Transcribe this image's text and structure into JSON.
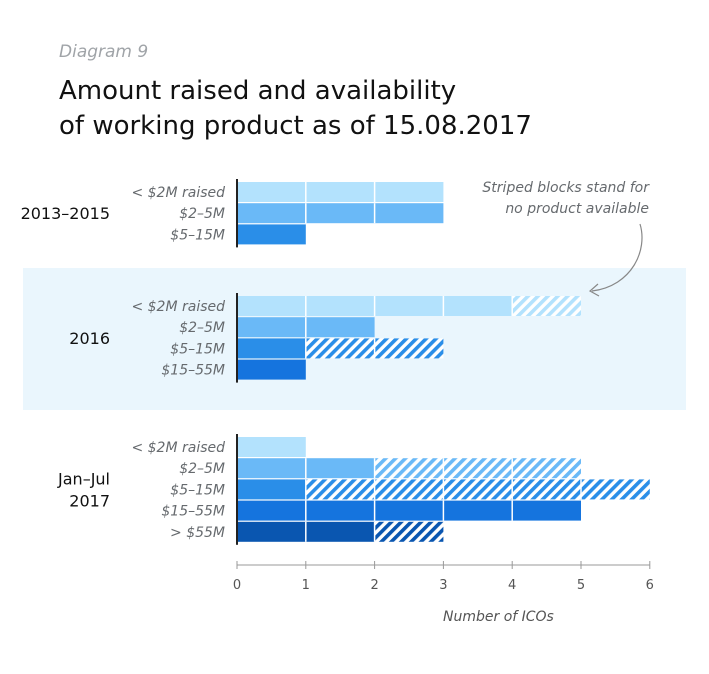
{
  "header": {
    "diagram_label": "Diagram 9",
    "title_line1": "Amount raised and availability",
    "title_line2": "of working product as of 15.08.2017"
  },
  "annotation": {
    "line1": "Striped blocks stand for",
    "line2": "no product available"
  },
  "colors": {
    "< $2M raised": "#b3e2fd",
    "$2–5M": "#6ab9f7",
    "$5–15M": "#2a8ee8",
    "$15–55M": "#1574de",
    "> $55M": "#0a56b0",
    "highlight_band": "#eaf6fd",
    "axis": "#222222"
  },
  "chart_data": {
    "type": "bar",
    "orientation": "horizontal",
    "stacking": "each bar split into product-available (solid) and no-product (striped) segments",
    "xlabel": "Number of ICOs",
    "xlim": [
      0,
      6
    ],
    "xticks": [
      0,
      1,
      2,
      3,
      4,
      5,
      6
    ],
    "grid": false,
    "highlighted_group": "2016",
    "groups": [
      {
        "name": "2013–2015",
        "label_lines": [
          "2013–2015"
        ],
        "bars": [
          {
            "category": "< $2M raised",
            "with_product": 3,
            "no_product": 0
          },
          {
            "category": "$2–5M",
            "with_product": 3,
            "no_product": 0
          },
          {
            "category": "$5–15M",
            "with_product": 1,
            "no_product": 0
          }
        ]
      },
      {
        "name": "2016",
        "label_lines": [
          "2016"
        ],
        "bars": [
          {
            "category": "< $2M raised",
            "with_product": 4,
            "no_product": 1
          },
          {
            "category": "$2–5M",
            "with_product": 2,
            "no_product": 0
          },
          {
            "category": "$5–15M",
            "with_product": 1,
            "no_product": 2
          },
          {
            "category": "$15–55M",
            "with_product": 1,
            "no_product": 0
          }
        ]
      },
      {
        "name": "Jan–Jul 2017",
        "label_lines": [
          "Jan–Jul",
          "2017"
        ],
        "bars": [
          {
            "category": "< $2M raised",
            "with_product": 1,
            "no_product": 0
          },
          {
            "category": "$2–5M",
            "with_product": 2,
            "no_product": 3
          },
          {
            "category": "$5–15M",
            "with_product": 1,
            "no_product": 5
          },
          {
            "category": "$15–55M",
            "with_product": 5,
            "no_product": 0
          },
          {
            "category": "> $55M",
            "with_product": 2,
            "no_product": 1
          }
        ]
      }
    ]
  }
}
